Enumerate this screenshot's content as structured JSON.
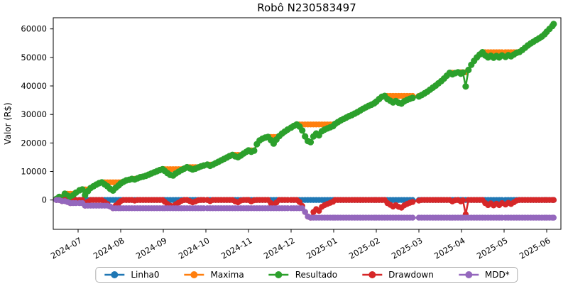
{
  "title": "Robô N230583497",
  "chart_data": {
    "type": "line",
    "title": "Robô N230583497",
    "xlabel": "",
    "ylabel": "Valor (R$)",
    "x_tick_labels": [
      "2024-07",
      "2024-08",
      "2024-09",
      "2024-10",
      "2024-11",
      "2024-12",
      "2025-01",
      "2025-02",
      "2025-03",
      "2025-04",
      "2025-05",
      "2025-06"
    ],
    "y_tick_labels": [
      "0",
      "10000",
      "20000",
      "30000",
      "40000",
      "50000",
      "60000"
    ],
    "y_tick_values": [
      0,
      10000,
      20000,
      30000,
      40000,
      50000,
      60000
    ],
    "ylim": [
      -10300,
      63900
    ],
    "grid": false,
    "legend_position": "bottom center",
    "marker": "circle",
    "series": [
      {
        "name": "Linha0",
        "color": "#1f77b4",
        "rule": "constant",
        "value": 0
      },
      {
        "name": "Maxima",
        "color": "#ff7f0e",
        "rule": "running_max_of_resultado"
      },
      {
        "name": "Resultado",
        "color": "#2ca02c",
        "rule": "points",
        "points": [
          [
            "2024-06-16",
            400
          ],
          [
            "2024-06-18",
            1100
          ],
          [
            "2024-06-20",
            700
          ],
          [
            "2024-06-22",
            2200
          ],
          [
            "2024-06-24",
            1500
          ],
          [
            "2024-06-26",
            1100
          ],
          [
            "2024-06-28",
            1700
          ],
          [
            "2024-06-30",
            2600
          ],
          [
            "2024-07-02",
            3400
          ],
          [
            "2024-07-04",
            3700
          ],
          [
            "2024-07-06",
            1700
          ],
          [
            "2024-07-08",
            3100
          ],
          [
            "2024-07-10",
            4200
          ],
          [
            "2024-07-12",
            4800
          ],
          [
            "2024-07-14",
            5400
          ],
          [
            "2024-07-16",
            5900
          ],
          [
            "2024-07-18",
            6200
          ],
          [
            "2024-07-20",
            5500
          ],
          [
            "2024-07-22",
            4800
          ],
          [
            "2024-07-24",
            3900
          ],
          [
            "2024-07-26",
            3300
          ],
          [
            "2024-07-28",
            4300
          ],
          [
            "2024-07-30",
            5100
          ],
          [
            "2024-08-01",
            5800
          ],
          [
            "2024-08-03",
            6400
          ],
          [
            "2024-08-05",
            6900
          ],
          [
            "2024-08-07",
            7100
          ],
          [
            "2024-08-09",
            7400
          ],
          [
            "2024-08-11",
            7200
          ],
          [
            "2024-08-13",
            7600
          ],
          [
            "2024-08-15",
            8000
          ],
          [
            "2024-08-17",
            8200
          ],
          [
            "2024-08-19",
            8500
          ],
          [
            "2024-08-21",
            8900
          ],
          [
            "2024-08-23",
            9300
          ],
          [
            "2024-08-25",
            9700
          ],
          [
            "2024-08-27",
            10100
          ],
          [
            "2024-08-29",
            10500
          ],
          [
            "2024-08-31",
            10800
          ],
          [
            "2024-09-02",
            10200
          ],
          [
            "2024-09-04",
            9400
          ],
          [
            "2024-09-06",
            8800
          ],
          [
            "2024-09-08",
            8600
          ],
          [
            "2024-09-10",
            9300
          ],
          [
            "2024-09-12",
            9900
          ],
          [
            "2024-09-14",
            10500
          ],
          [
            "2024-09-16",
            11000
          ],
          [
            "2024-09-18",
            11500
          ],
          [
            "2024-09-20",
            11100
          ],
          [
            "2024-09-22",
            10700
          ],
          [
            "2024-09-24",
            11000
          ],
          [
            "2024-09-26",
            11400
          ],
          [
            "2024-09-28",
            11800
          ],
          [
            "2024-09-30",
            12100
          ],
          [
            "2024-10-02",
            12400
          ],
          [
            "2024-10-04",
            12000
          ],
          [
            "2024-10-06",
            12400
          ],
          [
            "2024-10-08",
            12900
          ],
          [
            "2024-10-10",
            13400
          ],
          [
            "2024-10-12",
            13900
          ],
          [
            "2024-10-14",
            14400
          ],
          [
            "2024-10-16",
            14900
          ],
          [
            "2024-10-18",
            15400
          ],
          [
            "2024-10-20",
            15800
          ],
          [
            "2024-10-22",
            15300
          ],
          [
            "2024-10-24",
            15000
          ],
          [
            "2024-10-26",
            15600
          ],
          [
            "2024-10-28",
            16300
          ],
          [
            "2024-10-30",
            16900
          ],
          [
            "2024-11-01",
            17400
          ],
          [
            "2024-11-03",
            16900
          ],
          [
            "2024-11-05",
            17300
          ],
          [
            "2024-11-07",
            19600
          ],
          [
            "2024-11-09",
            20900
          ],
          [
            "2024-11-11",
            21500
          ],
          [
            "2024-11-13",
            21900
          ],
          [
            "2024-11-15",
            22100
          ],
          [
            "2024-11-17",
            21000
          ],
          [
            "2024-11-19",
            19800
          ],
          [
            "2024-11-21",
            21200
          ],
          [
            "2024-11-23",
            22400
          ],
          [
            "2024-11-25",
            23300
          ],
          [
            "2024-11-27",
            24000
          ],
          [
            "2024-11-29",
            24700
          ],
          [
            "2024-12-01",
            25400
          ],
          [
            "2024-12-03",
            26000
          ],
          [
            "2024-12-05",
            26500
          ],
          [
            "2024-12-07",
            25800
          ],
          [
            "2024-12-09",
            24400
          ],
          [
            "2024-12-11",
            22300
          ],
          [
            "2024-12-13",
            20700
          ],
          [
            "2024-12-15",
            20300
          ],
          [
            "2024-12-17",
            22300
          ],
          [
            "2024-12-19",
            23300
          ],
          [
            "2024-12-21",
            22700
          ],
          [
            "2024-12-23",
            24100
          ],
          [
            "2024-12-25",
            24700
          ],
          [
            "2024-12-27",
            25100
          ],
          [
            "2024-12-29",
            25500
          ],
          [
            "2024-12-31",
            25900
          ],
          [
            "2025-01-02",
            26700
          ],
          [
            "2025-01-04",
            27300
          ],
          [
            "2025-01-06",
            27900
          ],
          [
            "2025-01-08",
            28400
          ],
          [
            "2025-01-10",
            28900
          ],
          [
            "2025-01-12",
            29400
          ],
          [
            "2025-01-14",
            29800
          ],
          [
            "2025-01-16",
            30300
          ],
          [
            "2025-01-18",
            30800
          ],
          [
            "2025-01-20",
            31400
          ],
          [
            "2025-01-22",
            32000
          ],
          [
            "2025-01-24",
            32500
          ],
          [
            "2025-01-26",
            33000
          ],
          [
            "2025-01-28",
            33400
          ],
          [
            "2025-01-30",
            33900
          ],
          [
            "2025-02-01",
            34500
          ],
          [
            "2025-02-03",
            35400
          ],
          [
            "2025-02-05",
            36200
          ],
          [
            "2025-02-07",
            36500
          ],
          [
            "2025-02-09",
            35400
          ],
          [
            "2025-02-11",
            34800
          ],
          [
            "2025-02-13",
            34200
          ],
          [
            "2025-02-15",
            34700
          ],
          [
            "2025-02-17",
            34100
          ],
          [
            "2025-02-19",
            33800
          ],
          [
            "2025-02-21",
            34600
          ],
          [
            "2025-02-23",
            35100
          ],
          [
            "2025-02-25",
            35500
          ],
          [
            "2025-02-27",
            35800
          ],
          [
            "2025-03-01",
            36300
          ],
          [
            "2025-03-03",
            36800
          ],
          [
            "2025-03-05",
            37400
          ],
          [
            "2025-03-07",
            38000
          ],
          [
            "2025-03-09",
            38700
          ],
          [
            "2025-03-11",
            39400
          ],
          [
            "2025-03-13",
            40100
          ],
          [
            "2025-03-15",
            40900
          ],
          [
            "2025-03-17",
            41700
          ],
          [
            "2025-03-19",
            42600
          ],
          [
            "2025-03-21",
            43600
          ],
          [
            "2025-03-23",
            44600
          ],
          [
            "2025-03-25",
            44100
          ],
          [
            "2025-03-27",
            44500
          ],
          [
            "2025-03-29",
            44800
          ],
          [
            "2025-03-31",
            44300
          ],
          [
            "2025-04-02",
            44700
          ],
          [
            "2025-04-04",
            39800
          ],
          [
            "2025-04-06",
            45600
          ],
          [
            "2025-04-08",
            47400
          ],
          [
            "2025-04-10",
            48800
          ],
          [
            "2025-04-12",
            50000
          ],
          [
            "2025-04-14",
            51000
          ],
          [
            "2025-04-16",
            51800
          ],
          [
            "2025-04-18",
            50700
          ],
          [
            "2025-04-20",
            50000
          ],
          [
            "2025-04-22",
            50600
          ],
          [
            "2025-04-24",
            49900
          ],
          [
            "2025-04-26",
            50500
          ],
          [
            "2025-04-28",
            50000
          ],
          [
            "2025-04-30",
            50700
          ],
          [
            "2025-05-02",
            50200
          ],
          [
            "2025-05-04",
            50800
          ],
          [
            "2025-05-06",
            50400
          ],
          [
            "2025-05-08",
            51000
          ],
          [
            "2025-05-10",
            51600
          ],
          [
            "2025-05-12",
            51900
          ],
          [
            "2025-05-14",
            52600
          ],
          [
            "2025-05-16",
            53400
          ],
          [
            "2025-05-18",
            54200
          ],
          [
            "2025-05-20",
            54900
          ],
          [
            "2025-05-22",
            55500
          ],
          [
            "2025-05-24",
            56100
          ],
          [
            "2025-05-26",
            56700
          ],
          [
            "2025-05-28",
            57300
          ],
          [
            "2025-05-30",
            58100
          ],
          [
            "2025-06-01",
            59000
          ],
          [
            "2025-06-03",
            60000
          ],
          [
            "2025-06-05",
            61000
          ],
          [
            "2025-06-06",
            61700
          ]
        ]
      },
      {
        "name": "Drawdown",
        "color": "#d62728",
        "rule": "resultado_minus_maxima"
      },
      {
        "name": "MDD*",
        "color": "#9467bd",
        "rule": "running_min_of_drawdown",
        "steps": [
          [
            "2024-06-20",
            -400
          ],
          [
            "2024-06-24",
            -700
          ],
          [
            "2024-06-26",
            -1100
          ],
          [
            "2024-07-06",
            -2000
          ],
          [
            "2024-07-24",
            -2300
          ],
          [
            "2024-07-26",
            -2900
          ],
          [
            "2024-12-13",
            -5800
          ],
          [
            "2024-12-15",
            -6200
          ]
        ],
        "final_value": -6200
      }
    ]
  }
}
